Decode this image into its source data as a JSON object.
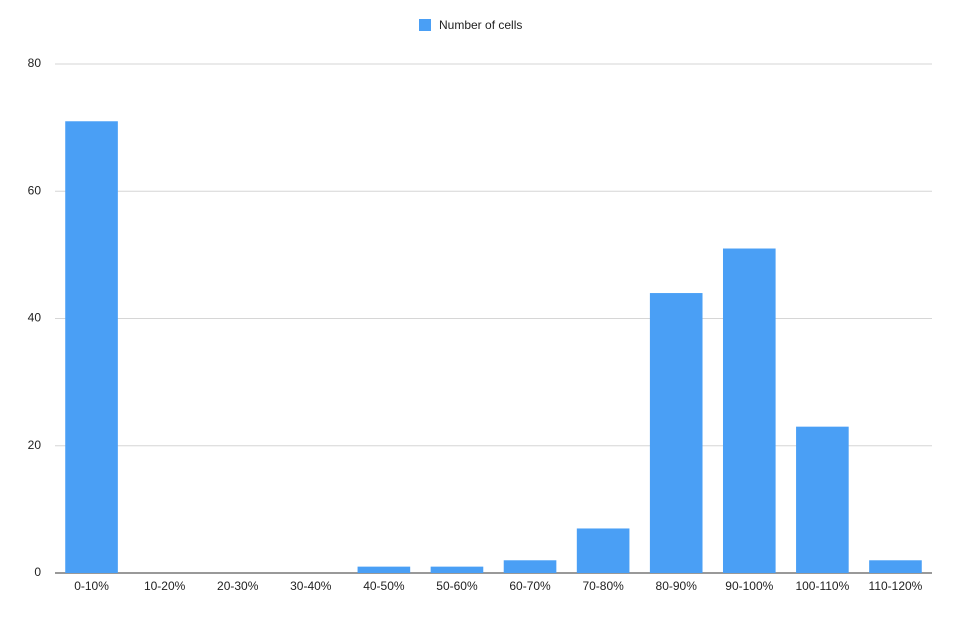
{
  "chart_data": {
    "type": "bar",
    "categories": [
      "0-10%",
      "10-20%",
      "20-30%",
      "30-40%",
      "40-50%",
      "50-60%",
      "60-70%",
      "70-80%",
      "80-90%",
      "90-100%",
      "100-110%",
      "110-120%"
    ],
    "series": [
      {
        "name": "Number of cells",
        "color": "#4a9ff5",
        "values": [
          71,
          0,
          0,
          0,
          1,
          1,
          2,
          7,
          44,
          51,
          23,
          2
        ]
      }
    ],
    "ylim": [
      0,
      80
    ],
    "yticks": [
      0,
      20,
      40,
      60,
      80
    ],
    "grid": true,
    "legend": "top"
  }
}
